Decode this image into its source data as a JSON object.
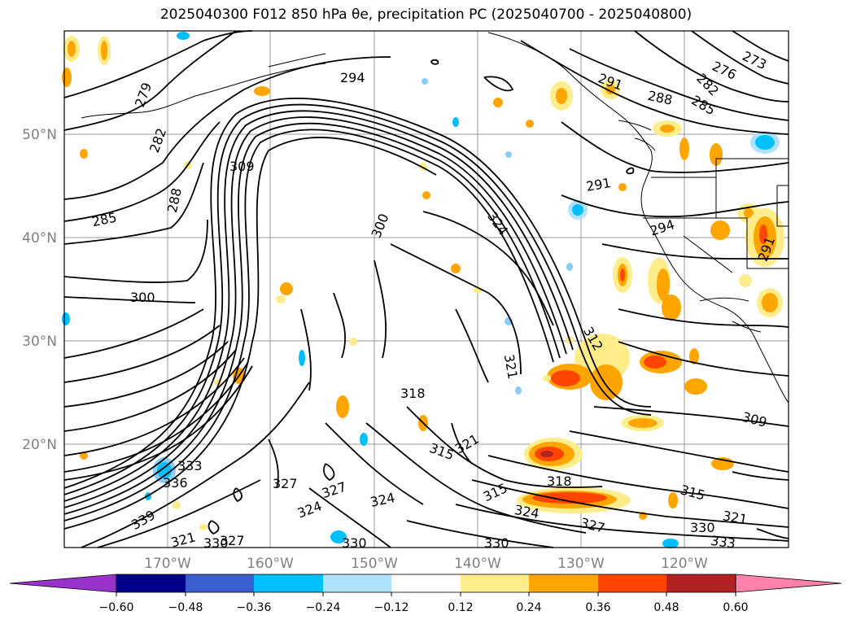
{
  "title": "2025040300 F012 850 hPa θe, precipitation PC (2025040700 - 2025040800)",
  "map": {
    "lon_ticks": [
      "170°W",
      "160°W",
      "150°W",
      "140°W",
      "130°W",
      "120°W"
    ],
    "lat_ticks": [
      "50°N",
      "40°N",
      "30°N",
      "20°N"
    ],
    "contour_labels": [
      "294",
      "279",
      "282",
      "288",
      "285",
      "309",
      "300",
      "300",
      "324",
      "318",
      "312",
      "321",
      "318",
      "315",
      "321",
      "324",
      "327",
      "324",
      "327",
      "324",
      "330",
      "327",
      "315",
      "309",
      "315",
      "321",
      "330",
      "333",
      "291",
      "288",
      "285",
      "282",
      "276",
      "273",
      "291",
      "294",
      "291",
      "336",
      "333",
      "330",
      "339",
      "321",
      "330",
      "327"
    ]
  },
  "colorbar": {
    "labels": [
      "−0.60",
      "−0.48",
      "−0.36",
      "−0.24",
      "−0.12",
      "0.12",
      "0.24",
      "0.36",
      "0.48",
      "0.60"
    ],
    "colors": [
      "#9932cc",
      "#00008b",
      "#3a5fcd",
      "#00bfff",
      "#b0e2ff",
      "#ffffff",
      "#ffec8b",
      "#ffa500",
      "#ff4500",
      "#b22222",
      "#ff82ab"
    ]
  }
}
